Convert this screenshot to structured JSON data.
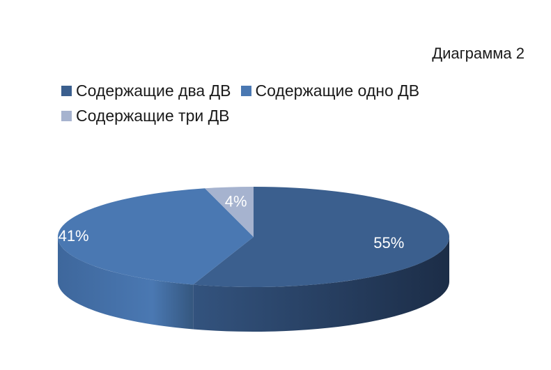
{
  "title": "Диаграмма 2",
  "chart_data": {
    "type": "pie",
    "title": "Диаграмма 2",
    "legend_position": "top",
    "slices": [
      {
        "name": "Содержащие два ДВ",
        "value": 55,
        "label": "55%",
        "color": "#3b5f8e"
      },
      {
        "name": "Содержащие одно ДВ",
        "value": 41,
        "label": "41%",
        "color": "#4a78b2"
      },
      {
        "name": "Содержащие три ДВ",
        "value": 4,
        "label": "4%",
        "color": "#a6b3cf"
      }
    ]
  }
}
